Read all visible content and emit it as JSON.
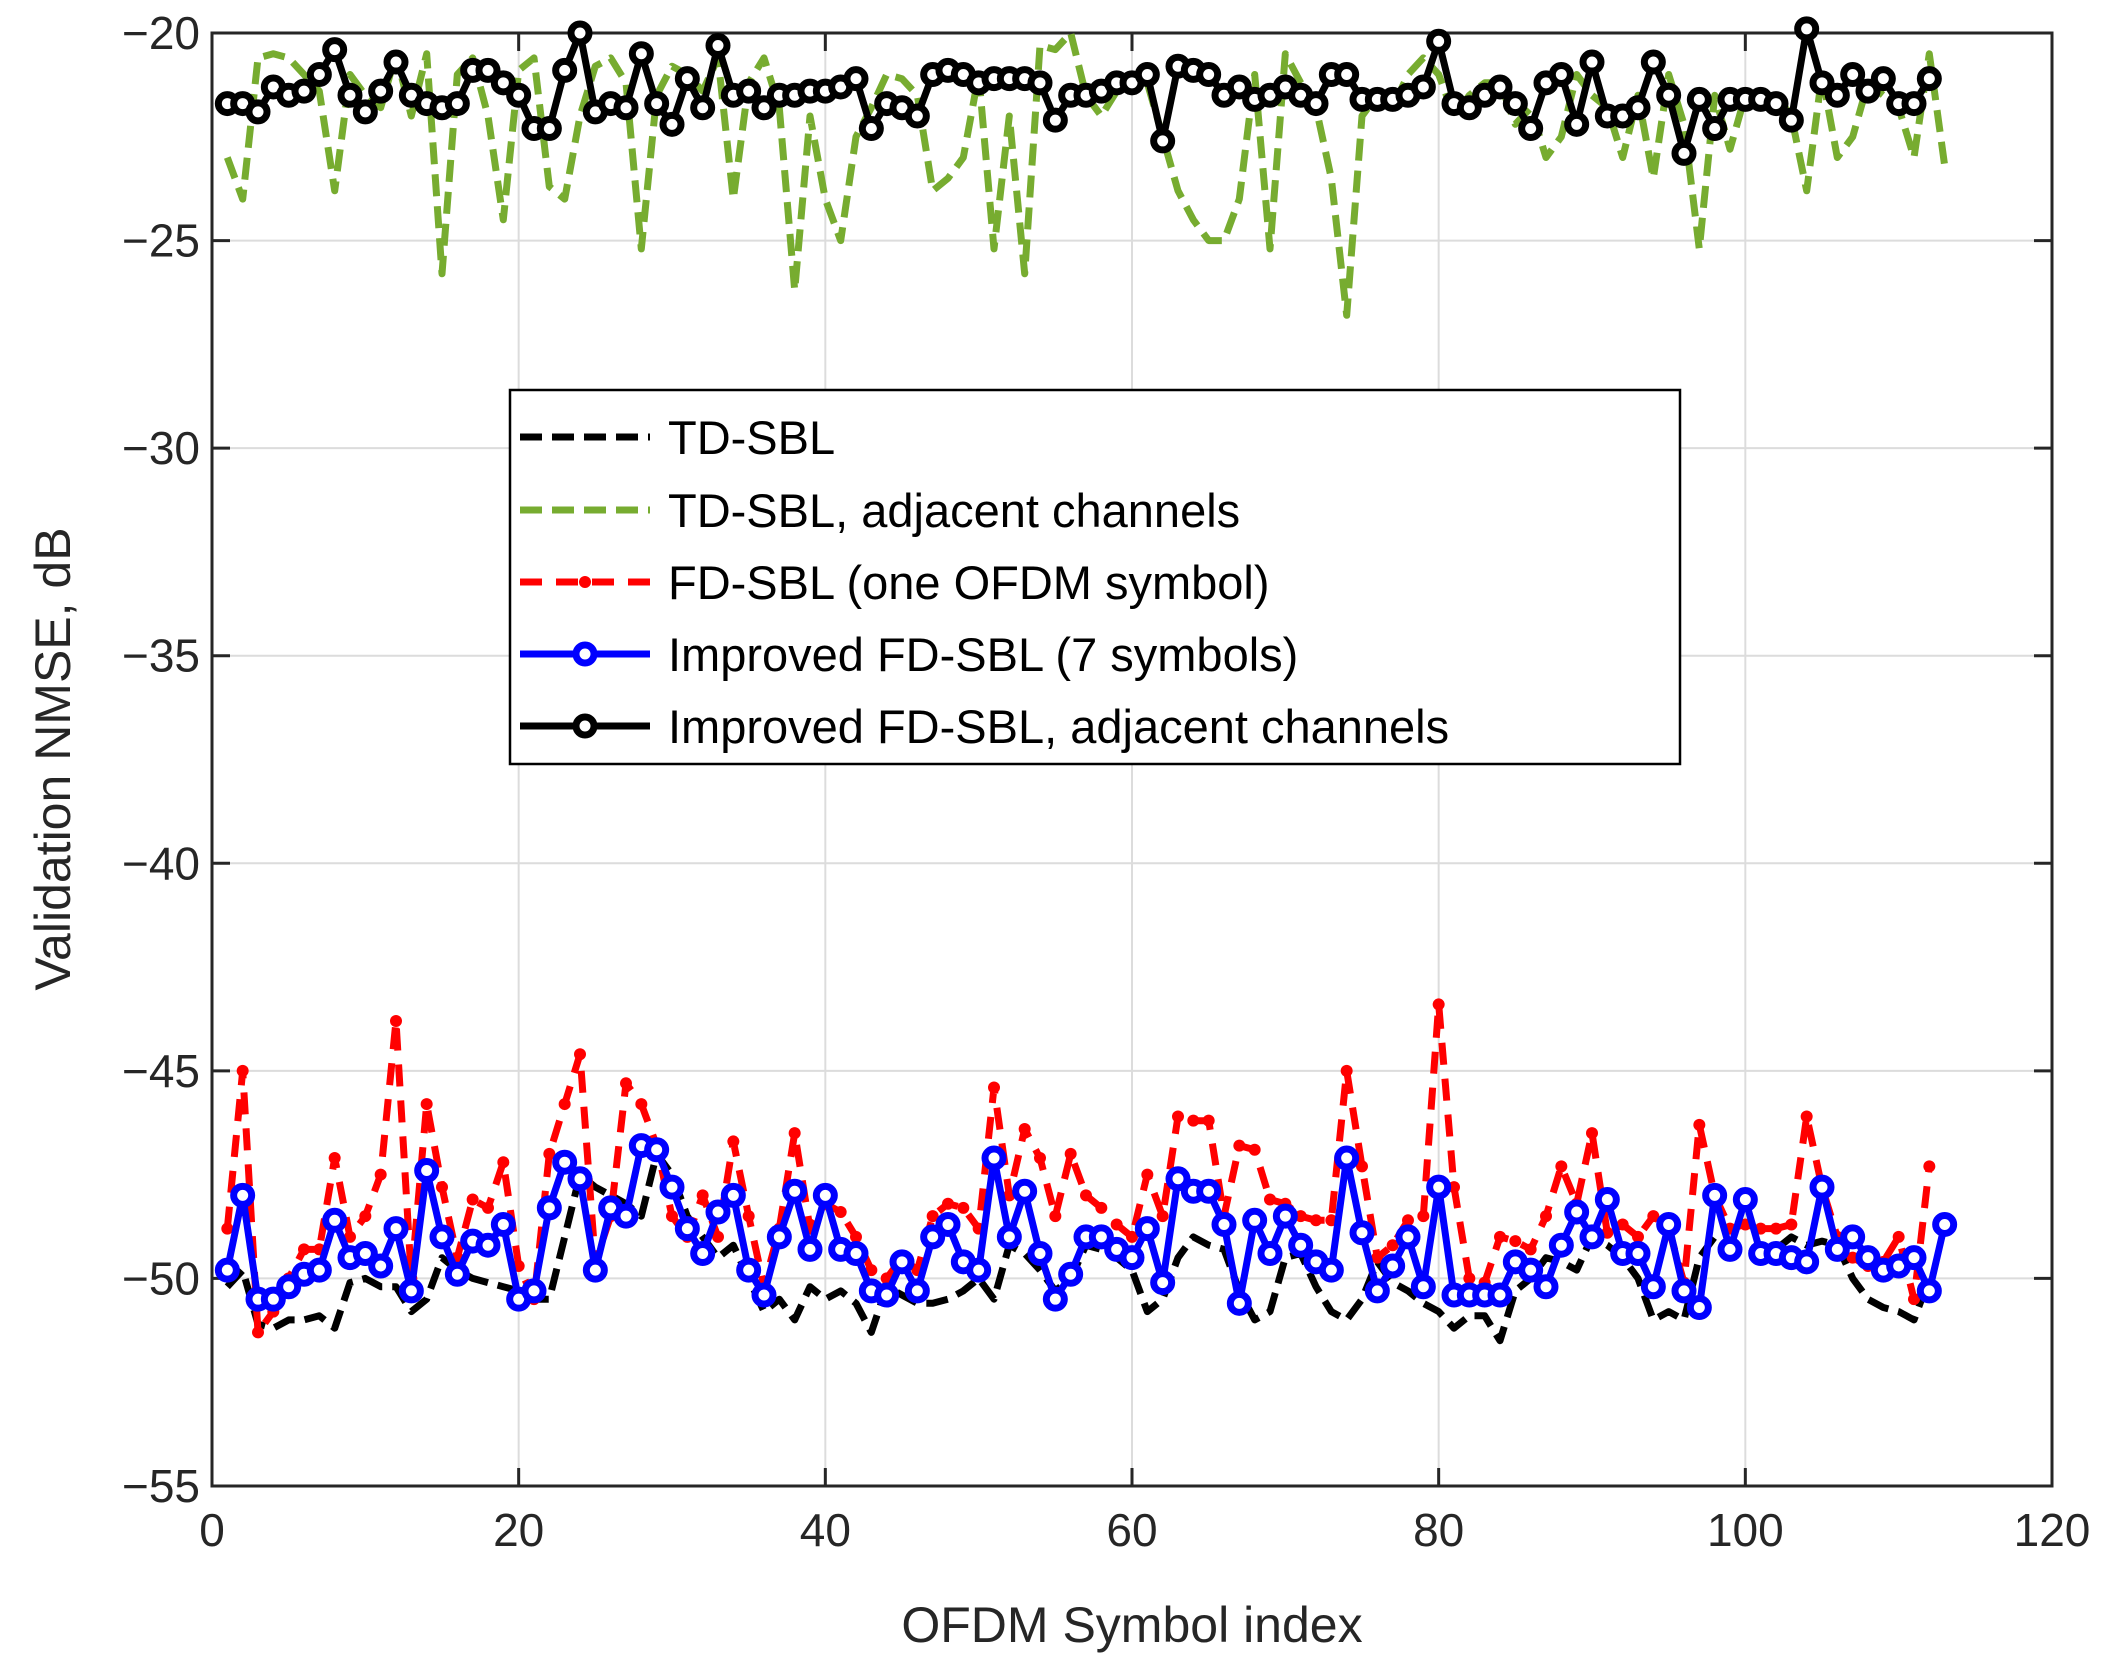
{
  "chart_data": {
    "type": "line",
    "title": "",
    "xlabel": "OFDM Symbol index",
    "ylabel": "Validation NMSE, dB",
    "xlim": [
      0,
      120
    ],
    "ylim": [
      -55,
      -20
    ],
    "x_ticks": [
      0,
      20,
      40,
      60,
      80,
      100,
      120
    ],
    "y_ticks": [
      -55,
      -50,
      -45,
      -40,
      -35,
      -30,
      -25,
      -20
    ],
    "x_tick_labels": [
      "0",
      "20",
      "40",
      "60",
      "80",
      "100",
      "120"
    ],
    "y_tick_labels": [
      "−55",
      "−50",
      "−45",
      "−40",
      "−35",
      "−30",
      "−25",
      "−20"
    ],
    "grid": true,
    "legend_position": "center-left",
    "x_start": 1,
    "series": [
      {
        "name": "TD-SBL",
        "color": "#000000",
        "style": "dashed",
        "marker": "none",
        "values": [
          -50.2,
          -49.8,
          -51.1,
          -51.2,
          -51.0,
          -51.0,
          -50.9,
          -51.2,
          -50.1,
          -50.0,
          -50.2,
          -50.2,
          -50.8,
          -50.5,
          -49.5,
          -49.8,
          -50.0,
          -50.1,
          -50.2,
          -50.3,
          -50.5,
          -50.5,
          -49.0,
          -47.5,
          -47.8,
          -48.0,
          -48.2,
          -48.5,
          -47.0,
          -47.5,
          -48.5,
          -49.0,
          -49.5,
          -49.2,
          -50.0,
          -50.8,
          -50.5,
          -51.0,
          -50.2,
          -50.5,
          -50.3,
          -50.6,
          -51.3,
          -50.2,
          -50.4,
          -50.6,
          -50.6,
          -50.5,
          -50.3,
          -50.0,
          -50.5,
          -49.2,
          -49.4,
          -49.8,
          -50.3,
          -50.0,
          -49.2,
          -49.3,
          -49.5,
          -49.8,
          -50.8,
          -50.5,
          -49.5,
          -49.0,
          -49.2,
          -49.3,
          -50.3,
          -51.0,
          -50.8,
          -49.5,
          -49.4,
          -50.2,
          -50.8,
          -51.0,
          -50.5,
          -49.6,
          -50.1,
          -50.3,
          -50.6,
          -50.8,
          -51.2,
          -50.9,
          -50.9,
          -51.5,
          -50.3,
          -50.0,
          -49.5,
          -49.6,
          -49.8,
          -49.0,
          -49.2,
          -49.5,
          -50.0,
          -51.0,
          -50.8,
          -51.0,
          -49.5,
          -49.0,
          -49.3,
          -49.2,
          -49.4,
          -49.3,
          -49.0,
          -49.2,
          -49.1,
          -49.2,
          -50.0,
          -50.5,
          -50.7,
          -50.8,
          -51.0,
          -50.0
        ]
      },
      {
        "name": "TD-SBL, adjacent channels",
        "color": "#77AC30",
        "style": "dashed",
        "marker": "none",
        "values": [
          -23.0,
          -24.0,
          -20.6,
          -20.5,
          -20.6,
          -21.0,
          -21.4,
          -23.8,
          -21.0,
          -21.5,
          -21.8,
          -20.5,
          -22.0,
          -20.5,
          -25.8,
          -21.0,
          -20.6,
          -22.0,
          -24.5,
          -20.9,
          -20.6,
          -23.7,
          -24.0,
          -22.0,
          -20.8,
          -20.6,
          -21.2,
          -25.2,
          -21.5,
          -20.8,
          -21.0,
          -21.4,
          -20.6,
          -24.0,
          -21.2,
          -20.6,
          -21.8,
          -26.2,
          -22.0,
          -24.0,
          -25.0,
          -22.5,
          -21.8,
          -21.0,
          -21.1,
          -21.5,
          -23.8,
          -23.5,
          -23.0,
          -21.0,
          -25.2,
          -22.0,
          -25.8,
          -20.3,
          -20.4,
          -20.0,
          -21.5,
          -22.0,
          -21.4,
          -21.0,
          -21.2,
          -22.5,
          -23.8,
          -24.5,
          -25.0,
          -25.0,
          -24.0,
          -21.0,
          -25.2,
          -20.5,
          -21.2,
          -21.8,
          -23.5,
          -26.8,
          -22.0,
          -21.5,
          -21.8,
          -21.0,
          -20.6,
          -21.0,
          -22.0,
          -21.5,
          -21.2,
          -21.2,
          -22.2,
          -21.8,
          -23.0,
          -22.5,
          -21.0,
          -21.5,
          -21.8,
          -23.0,
          -21.5,
          -23.5,
          -21.0,
          -22.2,
          -25.2,
          -21.5,
          -22.8,
          -21.5,
          -21.4,
          -21.5,
          -22.0,
          -23.8,
          -21.0,
          -23.0,
          -22.5,
          -21.2,
          -21.5,
          -21.8,
          -23.0,
          -20.5,
          -23.2
        ]
      },
      {
        "name": "FD-SBL (one OFDM symbol)",
        "color": "#FF0000",
        "style": "dashed",
        "marker": "dot",
        "values": [
          -48.8,
          -45.0,
          -51.3,
          -50.8,
          -50.0,
          -49.3,
          -49.3,
          -47.1,
          -49.0,
          -48.5,
          -47.5,
          -43.8,
          -50.0,
          -45.8,
          -47.8,
          -49.5,
          -48.1,
          -48.3,
          -47.2,
          -49.7,
          -50.5,
          -47.0,
          -45.8,
          -44.6,
          -49.6,
          -48.5,
          -45.3,
          -45.8,
          -46.8,
          -48.5,
          -49.0,
          -48.0,
          -49.0,
          -46.7,
          -48.5,
          -50.2,
          -48.8,
          -46.5,
          -48.8,
          -48.2,
          -48.4,
          -49.0,
          -49.8,
          -50.0,
          -49.5,
          -49.8,
          -48.5,
          -48.2,
          -48.3,
          -48.8,
          -45.4,
          -48.0,
          -46.4,
          -47.1,
          -48.5,
          -47.0,
          -48.0,
          -48.3,
          -48.7,
          -49.0,
          -47.5,
          -48.5,
          -46.1,
          -46.2,
          -46.2,
          -48.5,
          -46.8,
          -46.9,
          -48.1,
          -48.2,
          -48.5,
          -48.6,
          -48.6,
          -45.0,
          -47.3,
          -49.5,
          -49.2,
          -48.6,
          -48.5,
          -43.4,
          -47.8,
          -50.0,
          -50.1,
          -49.0,
          -49.1,
          -49.3,
          -48.5,
          -47.3,
          -48.2,
          -46.5,
          -48.9,
          -48.7,
          -49.0,
          -48.5,
          -48.8,
          -50.1,
          -46.3,
          -48.0,
          -48.8,
          -48.7,
          -48.8,
          -48.8,
          -48.7,
          -46.1,
          -47.8,
          -49.0,
          -49.5,
          -49.7,
          -49.6,
          -49.0,
          -50.5,
          -47.3
        ]
      },
      {
        "name": "Improved FD-SBL (7 symbols)",
        "color": "#0000FF",
        "style": "solid",
        "marker": "circle",
        "values": [
          -49.8,
          -48.0,
          -50.5,
          -50.5,
          -50.2,
          -49.9,
          -49.8,
          -48.6,
          -49.5,
          -49.4,
          -49.7,
          -48.8,
          -50.3,
          -47.4,
          -49.0,
          -49.9,
          -49.1,
          -49.2,
          -48.7,
          -50.5,
          -50.3,
          -48.3,
          -47.2,
          -47.6,
          -49.8,
          -48.3,
          -48.5,
          -46.8,
          -46.9,
          -47.8,
          -48.8,
          -49.4,
          -48.4,
          -48.0,
          -49.8,
          -50.4,
          -49.0,
          -47.9,
          -49.3,
          -48.0,
          -49.3,
          -49.4,
          -50.3,
          -50.4,
          -49.6,
          -50.3,
          -49.0,
          -48.7,
          -49.6,
          -49.8,
          -47.1,
          -49.0,
          -47.9,
          -49.4,
          -50.5,
          -49.9,
          -49.0,
          -49.0,
          -49.3,
          -49.5,
          -48.8,
          -50.1,
          -47.6,
          -47.9,
          -47.9,
          -48.7,
          -50.6,
          -48.6,
          -49.4,
          -48.5,
          -49.2,
          -49.6,
          -49.8,
          -47.1,
          -48.9,
          -50.3,
          -49.7,
          -49.0,
          -50.2,
          -47.8,
          -50.4,
          -50.4,
          -50.4,
          -50.4,
          -49.6,
          -49.8,
          -50.2,
          -49.2,
          -48.4,
          -49.0,
          -48.1,
          -49.4,
          -49.4,
          -50.2,
          -48.7,
          -50.3,
          -50.7,
          -48.0,
          -49.3,
          -48.1,
          -49.4,
          -49.4,
          -49.5,
          -49.6,
          -47.8,
          -49.3,
          -49.0,
          -49.5,
          -49.8,
          -49.7,
          -49.5,
          -50.3,
          -48.7
        ]
      },
      {
        "name": "Improved FD-SBL, adjacent channels",
        "color": "#000000",
        "style": "solid",
        "marker": "circle",
        "values": [
          -21.7,
          -21.7,
          -21.9,
          -21.3,
          -21.5,
          -21.4,
          -21.0,
          -20.4,
          -21.5,
          -21.9,
          -21.4,
          -20.7,
          -21.5,
          -21.7,
          -21.8,
          -21.7,
          -20.9,
          -20.9,
          -21.2,
          -21.5,
          -22.3,
          -22.3,
          -20.9,
          -20.0,
          -21.9,
          -21.7,
          -21.8,
          -20.5,
          -21.7,
          -22.2,
          -21.1,
          -21.8,
          -20.3,
          -21.5,
          -21.4,
          -21.8,
          -21.5,
          -21.5,
          -21.4,
          -21.4,
          -21.3,
          -21.1,
          -22.3,
          -21.7,
          -21.8,
          -22.0,
          -21.0,
          -20.9,
          -21.0,
          -21.2,
          -21.1,
          -21.1,
          -21.1,
          -21.2,
          -22.1,
          -21.5,
          -21.5,
          -21.4,
          -21.2,
          -21.2,
          -21.0,
          -22.6,
          -20.8,
          -20.9,
          -21.0,
          -21.5,
          -21.3,
          -21.6,
          -21.5,
          -21.3,
          -21.5,
          -21.7,
          -21.0,
          -21.0,
          -21.6,
          -21.6,
          -21.6,
          -21.5,
          -21.3,
          -20.2,
          -21.7,
          -21.8,
          -21.5,
          -21.3,
          -21.7,
          -22.3,
          -21.2,
          -21.0,
          -22.2,
          -20.7,
          -22.0,
          -22.0,
          -21.8,
          -20.7,
          -21.5,
          -22.9,
          -21.6,
          -22.3,
          -21.6,
          -21.6,
          -21.6,
          -21.7,
          -22.1,
          -19.9,
          -21.2,
          -21.5,
          -21.0,
          -21.4,
          -21.1,
          -21.7,
          -21.7,
          -21.1
        ]
      }
    ]
  }
}
